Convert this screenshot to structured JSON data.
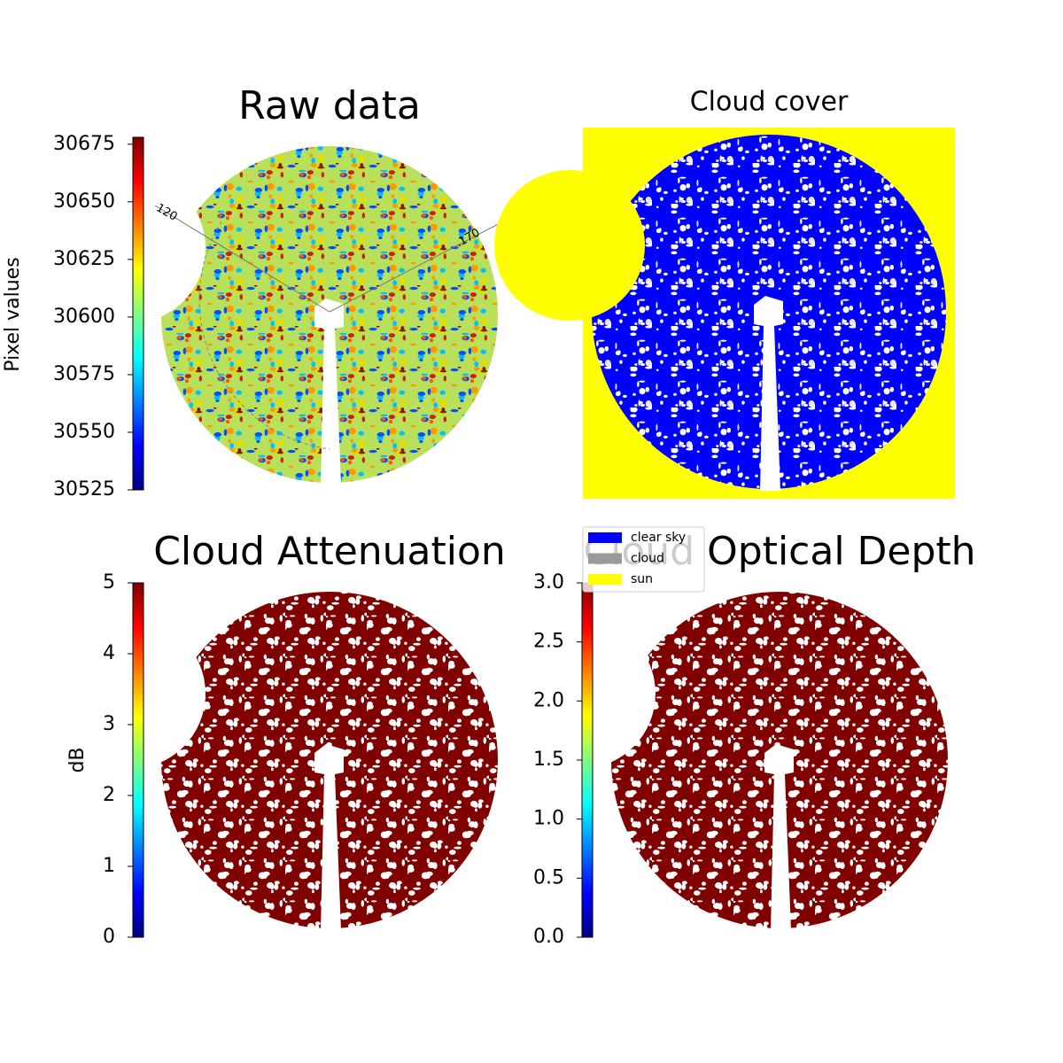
{
  "chart_data": [
    {
      "type": "image",
      "title": "Raw data",
      "colormap": "jet",
      "colorbar_label": "Pixel values",
      "clim": [
        30525,
        30678
      ],
      "cticks": [
        30525,
        30550,
        30575,
        30600,
        30625,
        30650,
        30675
      ],
      "annotations": [
        "120",
        "170"
      ],
      "background": "#ffffff"
    },
    {
      "type": "image",
      "title": "Cloud cover",
      "background": "#ffff00",
      "legend": [
        {
          "name": "clear sky",
          "color": "#0000ff"
        },
        {
          "name": "cloud",
          "color": "#9a9a9a"
        },
        {
          "name": "sun",
          "color": "#ffff00"
        }
      ]
    },
    {
      "type": "image",
      "title": "Cloud Attenuation",
      "colormap": "jet",
      "colorbar_label": "dB",
      "clim": [
        0,
        5
      ],
      "cticks": [
        0,
        1,
        2,
        3,
        4,
        5
      ],
      "background": "#ffffff"
    },
    {
      "type": "image",
      "title": "Cloud Optical Depth",
      "colormap": "jet",
      "clim": [
        0,
        3
      ],
      "cticks": [
        {
          "value": 0,
          "label": "0.0"
        },
        {
          "value": 0.5,
          "label": "0.5"
        },
        {
          "value": 1,
          "label": "1.0"
        },
        {
          "value": 1.5,
          "label": "1.5"
        },
        {
          "value": 2,
          "label": "2.0"
        },
        {
          "value": 2.5,
          "label": "2.5"
        },
        {
          "value": 3,
          "label": "3.0"
        }
      ],
      "background": "#ffffff"
    }
  ]
}
